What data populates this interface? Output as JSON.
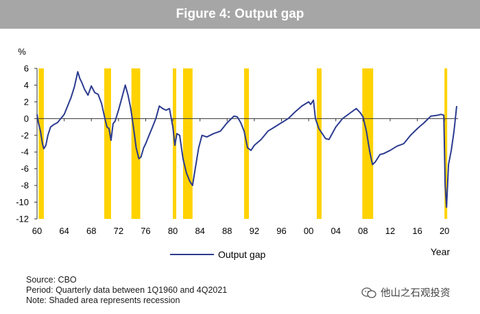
{
  "title": "Figure 4: Output gap",
  "chart_data": {
    "type": "line",
    "ylabel": "%",
    "xlabel": "Year",
    "ylim": [
      -12,
      6
    ],
    "yticks": [
      6,
      4,
      2,
      0,
      -2,
      -4,
      -6,
      -8,
      -10,
      -12
    ],
    "xlim": [
      1960,
      2022
    ],
    "xticks": [
      1960,
      1964,
      1968,
      1972,
      1976,
      1980,
      1984,
      1988,
      1992,
      1996,
      2000,
      2004,
      2008,
      2012,
      2016,
      2020
    ],
    "xtick_labels": [
      "60",
      "64",
      "68",
      "72",
      "76",
      "80",
      "84",
      "88",
      "92",
      "96",
      "00",
      "04",
      "08",
      "12",
      "16",
      "20"
    ],
    "recessions": [
      [
        1960.25,
        1961.0
      ],
      [
        1969.9,
        1970.9
      ],
      [
        1973.9,
        1975.2
      ],
      [
        1980.0,
        1980.5
      ],
      [
        1981.5,
        1982.9
      ],
      [
        1990.5,
        1991.2
      ],
      [
        2001.2,
        2001.9
      ],
      [
        2007.9,
        2009.5
      ],
      [
        2020.0,
        2020.4
      ]
    ],
    "series": [
      {
        "name": "Output gap",
        "color": "#2b3a8f",
        "x": [
          1960.0,
          1960.2,
          1960.5,
          1960.8,
          1961.0,
          1961.3,
          1961.6,
          1962.0,
          1962.5,
          1963.0,
          1963.5,
          1964.0,
          1964.5,
          1965.0,
          1965.5,
          1966.0,
          1966.3,
          1966.6,
          1967.0,
          1967.5,
          1968.0,
          1968.5,
          1969.0,
          1969.5,
          1970.0,
          1970.3,
          1970.6,
          1970.9,
          1971.2,
          1971.5,
          1972.0,
          1972.5,
          1973.0,
          1973.4,
          1973.8,
          1974.2,
          1974.6,
          1975.0,
          1975.3,
          1975.7,
          1976.0,
          1976.5,
          1977.0,
          1977.5,
          1978.0,
          1978.5,
          1979.0,
          1979.5,
          1980.0,
          1980.3,
          1980.6,
          1981.0,
          1981.5,
          1982.0,
          1982.5,
          1982.9,
          1983.3,
          1983.8,
          1984.3,
          1985.0,
          1986.0,
          1987.0,
          1988.0,
          1989.0,
          1989.5,
          1990.0,
          1990.5,
          1991.0,
          1991.5,
          1992.0,
          1993.0,
          1994.0,
          1995.0,
          1996.0,
          1997.0,
          1998.0,
          1999.0,
          2000.0,
          2000.3,
          2000.7,
          2001.0,
          2001.5,
          2002.0,
          2002.5,
          2003.0,
          2004.0,
          2005.0,
          2006.0,
          2007.0,
          2007.6,
          2008.0,
          2008.5,
          2009.0,
          2009.4,
          2009.8,
          2010.5,
          2011.0,
          2012.0,
          2013.0,
          2014.0,
          2015.0,
          2016.0,
          2017.0,
          2018.0,
          2019.0,
          2019.5,
          2019.9,
          2020.1,
          2020.3,
          2020.6,
          2021.0,
          2021.4,
          2021.8
        ],
        "y": [
          0.5,
          -0.5,
          -1.5,
          -3.0,
          -3.6,
          -3.2,
          -2.0,
          -1.0,
          -0.7,
          -0.5,
          0.0,
          0.5,
          1.5,
          2.5,
          3.8,
          5.6,
          4.8,
          4.3,
          3.5,
          2.8,
          3.9,
          3.1,
          2.9,
          1.8,
          0.0,
          -1.0,
          -1.2,
          -2.6,
          -0.6,
          -0.3,
          1.0,
          2.5,
          4.0,
          2.8,
          1.2,
          -1.0,
          -3.5,
          -4.8,
          -4.6,
          -3.5,
          -3.0,
          -2.0,
          -1.0,
          0.0,
          1.5,
          1.2,
          1.0,
          1.2,
          -1.0,
          -3.2,
          -1.8,
          -2.0,
          -4.8,
          -6.5,
          -7.5,
          -8.0,
          -6.0,
          -3.5,
          -2.0,
          -2.2,
          -1.8,
          -1.5,
          -0.5,
          0.3,
          0.2,
          -0.5,
          -1.5,
          -3.5,
          -3.8,
          -3.2,
          -2.5,
          -1.5,
          -1.0,
          -0.5,
          0.0,
          0.8,
          1.5,
          2.0,
          1.7,
          2.2,
          0.0,
          -1.2,
          -1.8,
          -2.4,
          -2.5,
          -1.0,
          0.0,
          0.6,
          1.2,
          0.7,
          0.2,
          -1.5,
          -4.0,
          -5.5,
          -5.2,
          -4.3,
          -4.2,
          -3.8,
          -3.3,
          -3.0,
          -2.0,
          -1.2,
          -0.5,
          0.3,
          0.4,
          0.5,
          0.4,
          -8.0,
          -10.6,
          -5.5,
          -3.8,
          -1.5,
          1.5
        ]
      }
    ],
    "legend": [
      {
        "label": "Output gap",
        "position": "bottom-left"
      }
    ]
  },
  "notes": {
    "source": "Source: CBO",
    "period": "Period: Quarterly data between 1Q1960 and 4Q2021",
    "note": "Note: Shaded area represents recession"
  },
  "watermark": "他山之石观投资",
  "colors": {
    "header_bg": "#a6a6a6",
    "recession": "#ffd200",
    "line": "#2b3a8f"
  },
  "icons": {
    "watermark": "wechat-icon"
  }
}
